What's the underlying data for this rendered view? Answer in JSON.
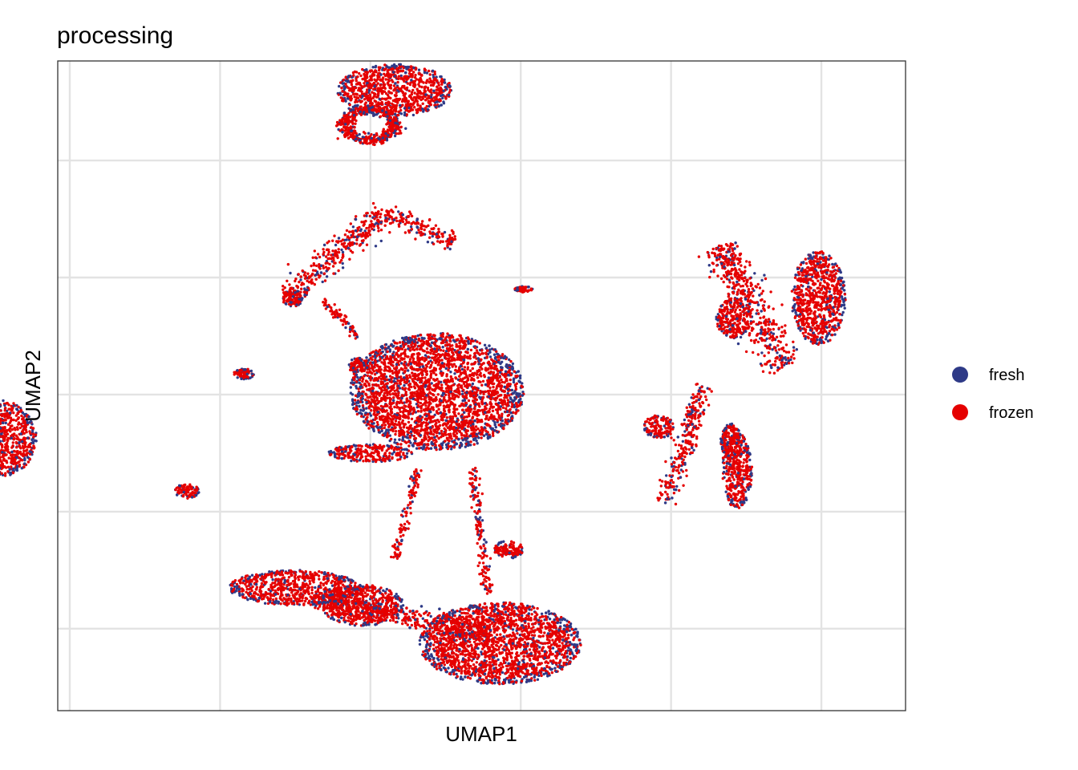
{
  "chart_data": {
    "type": "scatter",
    "title": "processing",
    "xlabel": "UMAP1",
    "ylabel": "UMAP2",
    "xlim": [
      -10.4,
      17.8
    ],
    "ylim": [
      -10.8,
      11.4
    ],
    "x_gridlines": [
      -10,
      -5,
      0,
      5,
      10,
      15
    ],
    "y_gridlines": [
      -8,
      -4,
      0,
      4,
      8
    ],
    "tick_labels_visible": false,
    "grid": true,
    "legend_position": "right",
    "series": [
      {
        "name": "fresh",
        "color": "#2e3a87"
      },
      {
        "name": "frozen",
        "color": "#e50000"
      }
    ],
    "clusters": [
      {
        "center": [
          0.8,
          10.4
        ],
        "spread": [
          1.9,
          0.9
        ],
        "shape": "blob"
      },
      {
        "center": [
          0.0,
          9.2
        ],
        "spread": [
          1.1,
          0.7
        ],
        "shape": "ring"
      },
      {
        "from": [
          -2.8,
          3.3
        ],
        "to": [
          0.5,
          6.3
        ],
        "width": 0.45,
        "shape": "arm"
      },
      {
        "from": [
          0.5,
          6.2
        ],
        "to": [
          2.8,
          5.2
        ],
        "width": 0.35,
        "shape": "arm"
      },
      {
        "from": [
          -0.4,
          2.0
        ],
        "to": [
          -1.6,
          3.2
        ],
        "width": 0.15,
        "shape": "arm"
      },
      {
        "center": [
          -2.6,
          3.3
        ],
        "spread": [
          0.35,
          0.3
        ],
        "shape": "blob"
      },
      {
        "center": [
          -0.4,
          1.0
        ],
        "spread": [
          0.35,
          0.25
        ],
        "shape": "blob"
      },
      {
        "center": [
          -4.2,
          0.7
        ],
        "spread": [
          0.35,
          0.18
        ],
        "shape": "blob"
      },
      {
        "center": [
          2.2,
          0.1
        ],
        "spread": [
          2.9,
          2.0
        ],
        "shape": "blob"
      },
      {
        "center": [
          0.0,
          -2.0
        ],
        "spread": [
          1.4,
          0.3
        ],
        "shape": "blob"
      },
      {
        "from": [
          1.6,
          -2.5
        ],
        "to": [
          0.8,
          -5.6
        ],
        "width": 0.15,
        "shape": "arm"
      },
      {
        "from": [
          3.4,
          -2.5
        ],
        "to": [
          3.9,
          -6.8
        ],
        "width": 0.18,
        "shape": "arm"
      },
      {
        "center": [
          4.6,
          -5.3
        ],
        "spread": [
          0.5,
          0.3
        ],
        "shape": "blob"
      },
      {
        "center": [
          4.3,
          -8.5
        ],
        "spread": [
          2.7,
          1.4
        ],
        "shape": "blob"
      },
      {
        "center": [
          -2.5,
          -6.6
        ],
        "spread": [
          2.2,
          0.6
        ],
        "shape": "blob"
      },
      {
        "from": [
          -2.0,
          -6.9
        ],
        "to": [
          4.0,
          -8.2
        ],
        "width": 0.4,
        "shape": "arm"
      },
      {
        "center": [
          -0.3,
          -7.2
        ],
        "spread": [
          1.4,
          0.7
        ],
        "shape": "blob"
      },
      {
        "center": [
          -13.6,
          -1.1
        ],
        "spread": [
          1.4,
          1.6
        ],
        "shape": "blob"
      },
      {
        "center": [
          -12.3,
          -1.5
        ],
        "spread": [
          1.2,
          1.3
        ],
        "shape": "blob"
      },
      {
        "center": [
          -6.1,
          -3.3
        ],
        "spread": [
          0.4,
          0.25
        ],
        "shape": "blob"
      },
      {
        "from": [
          11.6,
          5.1
        ],
        "to": [
          13.8,
          0.9
        ],
        "width": 0.6,
        "shape": "arm"
      },
      {
        "center": [
          14.9,
          3.3
        ],
        "spread": [
          0.9,
          1.6
        ],
        "shape": "blob"
      },
      {
        "center": [
          12.1,
          2.6
        ],
        "spread": [
          0.6,
          0.7
        ],
        "shape": "blob"
      },
      {
        "from": [
          11.1,
          0.3
        ],
        "to": [
          9.8,
          -3.7
        ],
        "width": 0.35,
        "shape": "arm"
      },
      {
        "center": [
          12.2,
          -2.6
        ],
        "spread": [
          0.5,
          1.3
        ],
        "shape": "blob"
      },
      {
        "center": [
          12.0,
          -1.6
        ],
        "spread": [
          0.35,
          0.6
        ],
        "shape": "blob"
      },
      {
        "center": [
          9.6,
          -1.1
        ],
        "spread": [
          0.5,
          0.4
        ],
        "shape": "blob"
      },
      {
        "center": [
          5.1,
          3.6
        ],
        "spread": [
          0.3,
          0.1
        ],
        "shape": "blob"
      }
    ]
  }
}
